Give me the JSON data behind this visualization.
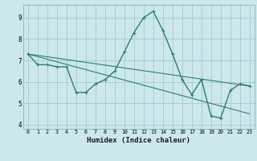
{
  "xlabel": "Humidex (Indice chaleur)",
  "background_color": "#cce8ed",
  "line_color": "#2e7d6e",
  "grid_color": "#a8cdd4",
  "xlim": [
    -0.5,
    23.5
  ],
  "ylim": [
    3.8,
    9.6
  ],
  "yticks": [
    4,
    5,
    6,
    7,
    8,
    9
  ],
  "xticks": [
    0,
    1,
    2,
    3,
    4,
    5,
    6,
    7,
    8,
    9,
    10,
    11,
    12,
    13,
    14,
    15,
    16,
    17,
    18,
    19,
    20,
    21,
    22,
    23
  ],
  "series_main": {
    "x": [
      0,
      1,
      2,
      3,
      4,
      5,
      6,
      7,
      8,
      9,
      10,
      11,
      12,
      13,
      14,
      15,
      16,
      17,
      18,
      19,
      20,
      21,
      22,
      23
    ],
    "y": [
      7.3,
      6.8,
      6.8,
      6.7,
      6.7,
      5.5,
      5.5,
      5.9,
      6.1,
      6.5,
      7.4,
      8.3,
      9.0,
      9.3,
      8.4,
      7.3,
      6.1,
      5.4,
      6.1,
      4.4,
      4.3,
      5.6,
      5.9,
      5.8
    ]
  },
  "series_trend1": {
    "x": [
      0,
      23
    ],
    "y": [
      7.3,
      5.8
    ]
  },
  "series_trend2": {
    "x": [
      0,
      23
    ],
    "y": [
      7.3,
      4.5
    ]
  }
}
